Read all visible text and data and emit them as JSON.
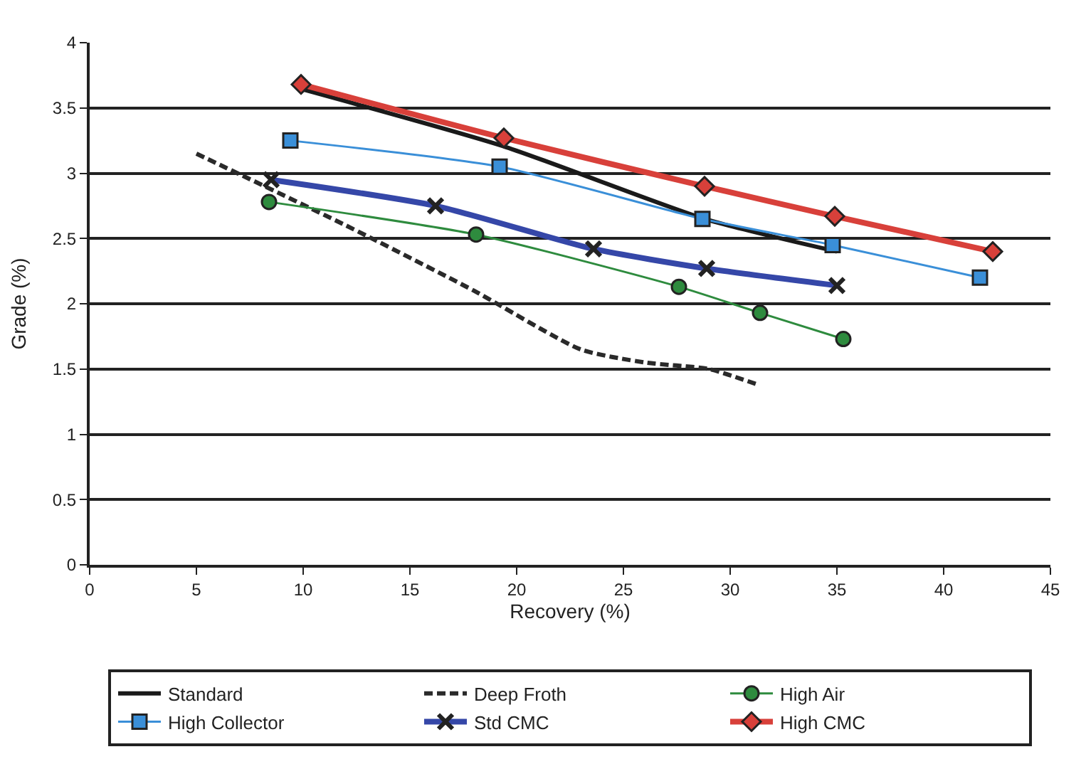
{
  "chart_data": {
    "type": "line",
    "xlabel": "Recovery (%)",
    "ylabel": "Grade (%)",
    "xlim": [
      0,
      45
    ],
    "xticks": [
      0,
      5,
      10,
      15,
      20,
      25,
      30,
      35,
      40,
      45
    ],
    "ylim": [
      0,
      4
    ],
    "yticks": [
      0,
      0.5,
      1,
      1.5,
      2,
      2.5,
      3,
      3.5,
      4
    ],
    "grid": "y",
    "legend": "bottom",
    "series": [
      {
        "name": "Standard",
        "color": "#1a1a1a",
        "x": [
          9.8,
          19.5,
          28.8,
          35
        ],
        "values": [
          3.65,
          3.2,
          2.65,
          2.4
        ],
        "marker": "none",
        "line_style": "solid"
      },
      {
        "name": "Deep Froth",
        "color": "#2a2a2a",
        "x": [
          5,
          12,
          18,
          23,
          26,
          29,
          31.3
        ],
        "values": [
          3.15,
          2.6,
          2.1,
          1.65,
          1.55,
          1.5,
          1.38
        ],
        "marker": "none",
        "line_style": "dashed"
      },
      {
        "name": "High Air",
        "color": "#2e8b3e",
        "x": [
          8.4,
          18.1,
          27.6,
          31.4,
          35.3
        ],
        "values": [
          2.78,
          2.53,
          2.13,
          1.93,
          1.73
        ],
        "marker": "circle",
        "line_style": "solid"
      },
      {
        "name": "High Collector",
        "color": "#3a8fd8",
        "x": [
          9.4,
          19.2,
          28.7,
          34.8,
          41.7
        ],
        "values": [
          3.25,
          3.05,
          2.65,
          2.45,
          2.2
        ],
        "marker": "square",
        "line_style": "solid"
      },
      {
        "name": "Std CMC",
        "color": "#3547a8",
        "x": [
          8.5,
          16.2,
          23.6,
          28.9,
          35
        ],
        "values": [
          2.95,
          2.75,
          2.42,
          2.27,
          2.14
        ],
        "marker": "cross",
        "line_style": "solid"
      },
      {
        "name": "High CMC",
        "color": "#d8403a",
        "x": [
          9.9,
          19.4,
          28.8,
          34.9,
          42.3
        ],
        "values": [
          3.68,
          3.27,
          2.9,
          2.67,
          2.4
        ],
        "marker": "diamond",
        "line_style": "solid"
      }
    ]
  }
}
